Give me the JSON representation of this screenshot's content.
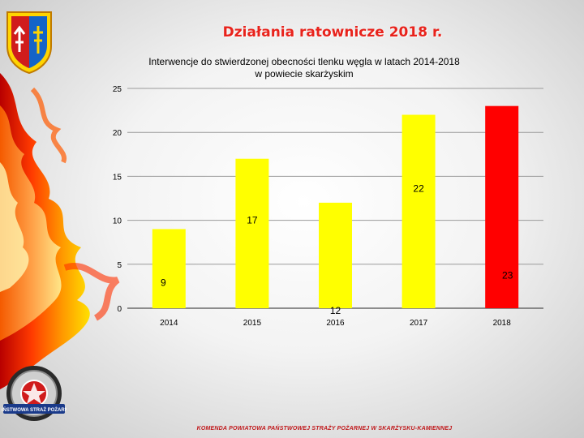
{
  "slide": {
    "title": "Działania ratownicze 2018 r.",
    "footer": "KOMENDA POWIATOWA PAŃSTWOWEJ STRAŻY POŻARNEJ W SKARŻYSKU-KAMIENNEJ",
    "badge_text": "PAŃSTWOWA STRAŻ POŻARNA"
  },
  "colors": {
    "bar_yellow": "#ffff00",
    "bar_red": "#ff0000",
    "title_red": "#e8231c"
  },
  "chart_data": {
    "type": "bar",
    "title_line1": "Interwencje do stwierdzonej obecności tlenku węgla w latach  2014-2018",
    "title_line2": "w  powiecie skarżyskim",
    "categories": [
      "2014",
      "2015",
      "2016",
      "2017",
      "2018"
    ],
    "values": [
      9,
      17,
      12,
      22,
      23
    ],
    "data_labels": [
      "9",
      "17",
      "12",
      "22",
      "23"
    ],
    "bar_colors": [
      "#ffff00",
      "#ffff00",
      "#ffff00",
      "#ffff00",
      "#ff0000"
    ],
    "ylim": [
      0,
      25
    ],
    "yticks": [
      "0",
      "5",
      "10",
      "15",
      "20",
      "25"
    ],
    "xlabel": "",
    "ylabel": "",
    "grid": true,
    "legend": "none"
  }
}
